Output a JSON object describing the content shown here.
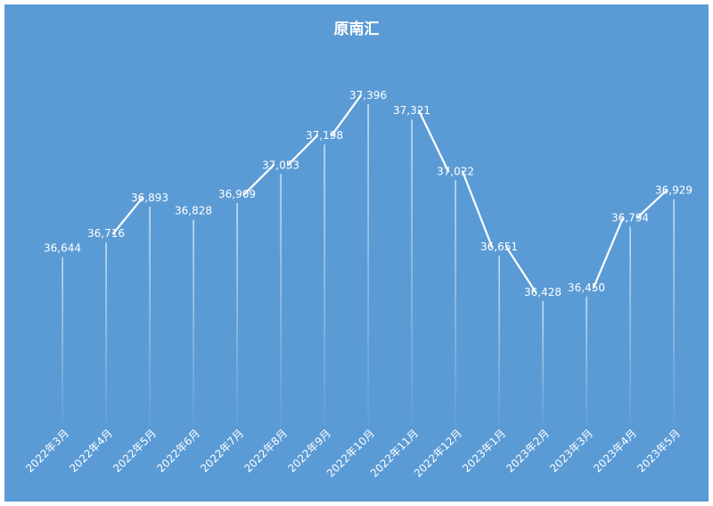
{
  "chart_data": {
    "type": "line",
    "title": "原南汇",
    "categories": [
      "2022年3月",
      "2022年4月",
      "2022年5月",
      "2022年6月",
      "2022年7月",
      "2022年8月",
      "2022年9月",
      "2022年10月",
      "2022年11月",
      "2022年12月",
      "2023年1月",
      "2023年2月",
      "2023年3月",
      "2023年4月",
      "2023年5月"
    ],
    "values": [
      36644,
      36716,
      36893,
      36828,
      36909,
      37053,
      37198,
      37396,
      37321,
      37022,
      36651,
      36428,
      36450,
      36794,
      36929
    ],
    "value_labels": [
      "36,644",
      "36,716",
      "36,893",
      "36,828",
      "36,909",
      "37,053",
      "37,198",
      "37,396",
      "37,321",
      "37,022",
      "36,651",
      "36,428",
      "36,450",
      "36,794",
      "36,929"
    ],
    "segments_drawn": [
      false,
      true,
      false,
      false,
      true,
      true,
      true,
      false,
      true,
      true,
      true,
      false,
      true,
      true
    ],
    "xlabel": "",
    "ylabel": "",
    "grid": false,
    "legend": "none",
    "colors": {
      "background": "#5b9bd5",
      "line": "#ffffff",
      "text": "#ffffff"
    }
  }
}
